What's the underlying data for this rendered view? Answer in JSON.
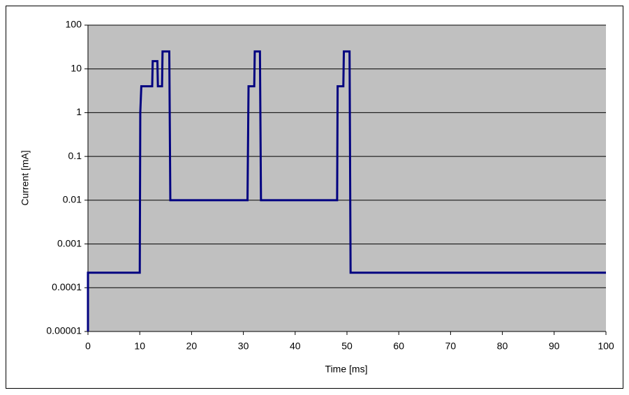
{
  "chart_data": {
    "type": "line",
    "xlabel": "Time [ms]",
    "ylabel": "Current [mA]",
    "x": [
      0,
      0,
      10,
      10.1,
      10.3,
      12.4,
      12.5,
      13.4,
      13.5,
      14.3,
      14.4,
      15.7,
      15.9,
      30.8,
      31,
      32.1,
      32.2,
      33.2,
      33.4,
      48.1,
      48.2,
      49.3,
      49.4,
      50.5,
      50.7,
      100
    ],
    "values": [
      1e-05,
      0.00022,
      0.00022,
      1,
      4,
      4,
      15,
      15,
      4,
      4,
      25,
      25,
      0.01,
      0.01,
      4,
      4,
      25,
      25,
      0.01,
      0.01,
      4,
      4,
      25,
      25,
      0.00022,
      0.00022
    ],
    "color": "#000080",
    "xlim": [
      0,
      100
    ],
    "xticks": [
      0,
      10,
      20,
      30,
      40,
      50,
      60,
      70,
      80,
      90,
      100
    ],
    "ylim": [
      1e-05,
      100
    ],
    "yticks": [
      1e-05,
      0.0001,
      0.001,
      0.01,
      0.1,
      1,
      10,
      100
    ],
    "yscale": "log",
    "grid": true,
    "plot_background": "#c0c0c0"
  }
}
